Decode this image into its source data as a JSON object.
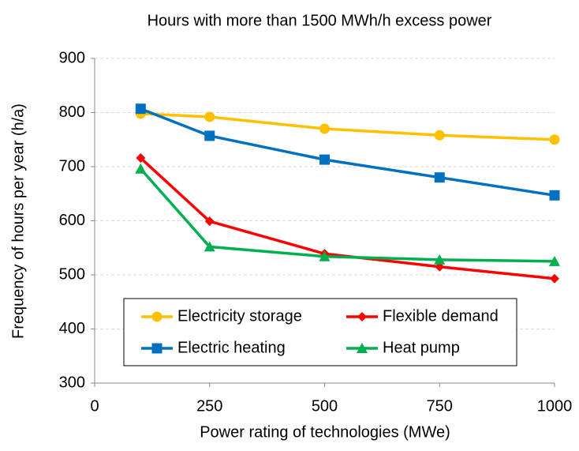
{
  "chart_data": {
    "type": "line",
    "title": "Hours with more than 1500 MWh/h excess power",
    "x_label": "Power rating of technologies (MWe)",
    "y_label": "Frequency of hours per year (h/a)",
    "x": [
      100,
      250,
      500,
      750,
      1000
    ],
    "series": [
      {
        "name": "Electricity storage",
        "color": "#ffc000",
        "marker": "circle",
        "values": [
          798,
          792,
          770,
          758,
          750
        ]
      },
      {
        "name": "Flexible demand",
        "color": "#ff0000",
        "marker": "diamond",
        "values": [
          716,
          599,
          539,
          515,
          493
        ]
      },
      {
        "name": "Electric heating",
        "color": "#0070c0",
        "marker": "square",
        "values": [
          807,
          757,
          713,
          680,
          647
        ]
      },
      {
        "name": "Heat pump",
        "color": "#00b050",
        "marker": "triangle",
        "values": [
          696,
          552,
          534,
          528,
          525
        ]
      }
    ],
    "xlim": [
      0,
      1000
    ],
    "xticks": [
      0,
      250,
      500,
      750,
      1000
    ],
    "ylim": [
      300,
      900
    ],
    "yticks": [
      300,
      400,
      500,
      600,
      700,
      800,
      900
    ],
    "grid": true,
    "legend": "lower center"
  }
}
